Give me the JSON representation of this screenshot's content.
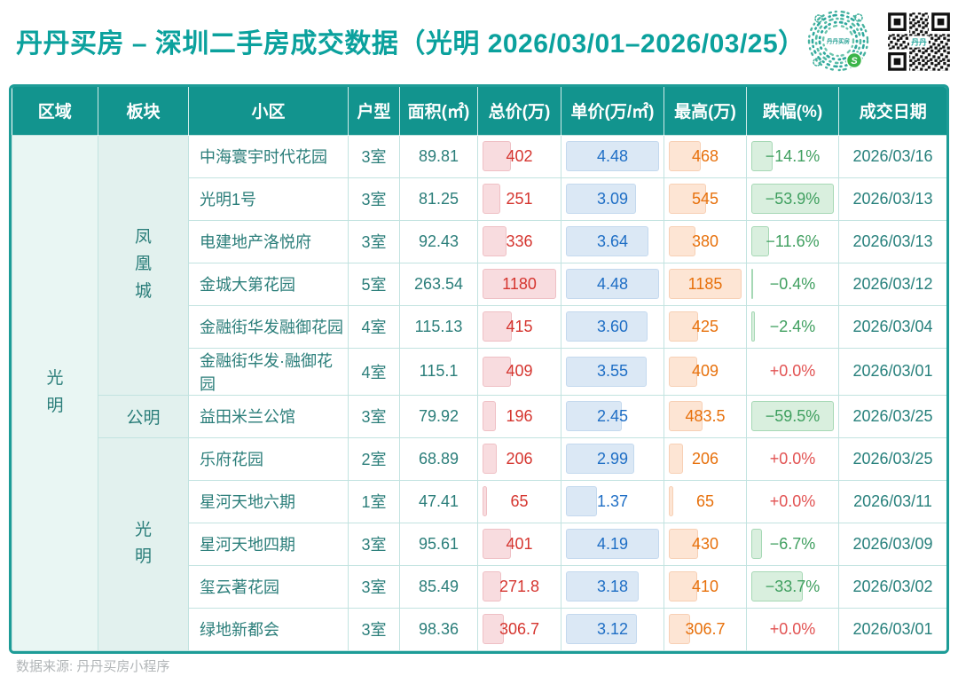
{
  "title": "丹丹买房 – 深圳二手房成交数据（光明 2026/03/01–2026/03/25）",
  "header_icons": {
    "miniprogram_logo_text": "丹丹买房",
    "qr_center_logo_text": "丹丹"
  },
  "footer": {
    "source": "数据来源: 丹丹买房小程序"
  },
  "colors": {
    "brand_teal": "#12948e",
    "title_teal": "#0ba19d",
    "body_teal_text": "#2b7e7a",
    "grid_line": "#c2e3e0",
    "total_red": "#d5352f",
    "unit_blue": "#1e6ec5",
    "high_orange": "#e7700b",
    "drop_green": "#3f9f5f",
    "drop_positive_red": "#e25252",
    "bar_pink": "#f8dcdf",
    "bar_blue": "#dbe8f5",
    "bar_orange": "#fde5d4",
    "bar_green": "#d9efde"
  },
  "table": {
    "headers": [
      "区域",
      "板块",
      "小区",
      "户型",
      "面积(㎡)",
      "总价(万)",
      "单价(万/㎡)",
      "最高(万)",
      "跌幅(%)",
      "成交日期"
    ],
    "region": "光明",
    "sectors": [
      "凤凰城",
      "公明",
      "光明"
    ],
    "rows": [
      {
        "community": "中海寰宇时代花园",
        "layout": "3室",
        "area": "89.81",
        "total": "402",
        "total_bar": "34%",
        "unit": "4.48",
        "unit_bar": "100%",
        "high": "468",
        "high_bar": "39.5%",
        "drop": "−14.1%",
        "drop_bar": "23.7%",
        "date": "2026/03/16"
      },
      {
        "community": "光明1号",
        "layout": "3室",
        "area": "81.25",
        "total": "251",
        "total_bar": "21.3%",
        "unit": "3.09",
        "unit_bar": "69%",
        "high": "545",
        "high_bar": "46%",
        "drop": "−53.9%",
        "drop_bar": "90.6%",
        "date": "2026/03/13"
      },
      {
        "community": "电建地产洛悦府",
        "layout": "3室",
        "area": "92.43",
        "total": "336",
        "total_bar": "28.5%",
        "unit": "3.64",
        "unit_bar": "81.3%",
        "high": "380",
        "high_bar": "32.1%",
        "drop": "−11.6%",
        "drop_bar": "19.5%",
        "date": "2026/03/13"
      },
      {
        "community": "金城大第花园",
        "layout": "5室",
        "area": "263.54",
        "total": "1180",
        "total_bar": "100%",
        "unit": "4.48",
        "unit_bar": "100%",
        "high": "1185",
        "high_bar": "100%",
        "drop": "−0.4%",
        "drop_bar": "1.2%",
        "date": "2026/03/12"
      },
      {
        "community": "金融街华发融御花园",
        "layout": "4室",
        "area": "115.13",
        "total": "415",
        "total_bar": "35.2%",
        "unit": "3.60",
        "unit_bar": "80.4%",
        "high": "425",
        "high_bar": "35.9%",
        "drop": "−2.4%",
        "drop_bar": "4%",
        "date": "2026/03/04"
      },
      {
        "community": "金融街华发·融御花园",
        "layout": "4室",
        "area": "115.1",
        "total": "409",
        "total_bar": "34.7%",
        "unit": "3.55",
        "unit_bar": "79.2%",
        "high": "409",
        "high_bar": "34.5%",
        "drop": "+0.0%",
        "drop_bar": "0",
        "date": "2026/03/01"
      },
      {
        "community": "益田米兰公馆",
        "layout": "3室",
        "area": "79.92",
        "total": "196",
        "total_bar": "16.6%",
        "unit": "2.45",
        "unit_bar": "54.7%",
        "high": "483.5",
        "high_bar": "40.8%",
        "drop": "−59.5%",
        "drop_bar": "100%",
        "date": "2026/03/25"
      },
      {
        "community": "乐府花园",
        "layout": "2室",
        "area": "68.89",
        "total": "206",
        "total_bar": "17.5%",
        "unit": "2.99",
        "unit_bar": "66.7%",
        "high": "206",
        "high_bar": "17.4%",
        "drop": "+0.0%",
        "drop_bar": "0",
        "date": "2026/03/25"
      },
      {
        "community": "星河天地六期",
        "layout": "1室",
        "area": "47.41",
        "total": "65",
        "total_bar": "5.5%",
        "unit": "1.37",
        "unit_bar": "30.6%",
        "high": "65",
        "high_bar": "5.5%",
        "drop": "+0.0%",
        "drop_bar": "0",
        "date": "2026/03/11"
      },
      {
        "community": "星河天地四期",
        "layout": "3室",
        "area": "95.61",
        "total": "401",
        "total_bar": "34%",
        "unit": "4.19",
        "unit_bar": "93.5%",
        "high": "430",
        "high_bar": "36.3%",
        "drop": "−6.7%",
        "drop_bar": "11.3%",
        "date": "2026/03/09"
      },
      {
        "community": "玺云著花园",
        "layout": "3室",
        "area": "85.49",
        "total": "271.8",
        "total_bar": "23%",
        "unit": "3.18",
        "unit_bar": "71%",
        "high": "410",
        "high_bar": "34.6%",
        "drop": "−33.7%",
        "drop_bar": "56.6%",
        "date": "2026/03/02"
      },
      {
        "community": "绿地新都会",
        "layout": "3室",
        "area": "98.36",
        "total": "306.7",
        "total_bar": "26%",
        "unit": "3.12",
        "unit_bar": "69.6%",
        "high": "306.7",
        "high_bar": "25.9%",
        "drop": "+0.0%",
        "drop_bar": "0",
        "date": "2026/03/01"
      }
    ]
  },
  "chart_data": {
    "type": "table",
    "title": "丹丹买房 – 深圳二手房成交数据（光明 2026/03/01–2026/03/25）",
    "columns": [
      "区域",
      "板块",
      "小区",
      "户型",
      "面积(㎡)",
      "总价(万)",
      "单价(万/㎡)",
      "最高(万)",
      "跌幅(%)",
      "成交日期"
    ],
    "region": "光明",
    "sector_groups": [
      {
        "sector": "凤凰城",
        "first_row": 0,
        "last_row": 5
      },
      {
        "sector": "公明",
        "first_row": 6,
        "last_row": 6
      },
      {
        "sector": "光明",
        "first_row": 7,
        "last_row": 11
      }
    ],
    "rows": [
      [
        "光明",
        "凤凰城",
        "中海寰宇时代花园",
        "3室",
        89.81,
        402,
        4.48,
        468,
        -14.1,
        "2026/03/16"
      ],
      [
        "光明",
        "凤凰城",
        "光明1号",
        "3室",
        81.25,
        251,
        3.09,
        545,
        -53.9,
        "2026/03/13"
      ],
      [
        "光明",
        "凤凰城",
        "电建地产洛悦府",
        "3室",
        92.43,
        336,
        3.64,
        380,
        -11.6,
        "2026/03/13"
      ],
      [
        "光明",
        "凤凰城",
        "金城大第花园",
        "5室",
        263.54,
        1180,
        4.48,
        1185,
        -0.4,
        "2026/03/12"
      ],
      [
        "光明",
        "凤凰城",
        "金融街华发融御花园",
        "4室",
        115.13,
        415,
        3.6,
        425,
        -2.4,
        "2026/03/04"
      ],
      [
        "光明",
        "凤凰城",
        "金融街华发·融御花园",
        "4室",
        115.1,
        409,
        3.55,
        409,
        0.0,
        "2026/03/01"
      ],
      [
        "光明",
        "公明",
        "益田米兰公馆",
        "3室",
        79.92,
        196,
        2.45,
        483.5,
        -59.5,
        "2026/03/25"
      ],
      [
        "光明",
        "光明",
        "乐府花园",
        "2室",
        68.89,
        206,
        2.99,
        206,
        0.0,
        "2026/03/25"
      ],
      [
        "光明",
        "光明",
        "星河天地六期",
        "1室",
        47.41,
        65,
        1.37,
        65,
        0.0,
        "2026/03/11"
      ],
      [
        "光明",
        "光明",
        "星河天地四期",
        "3室",
        95.61,
        401,
        4.19,
        430,
        -6.7,
        "2026/03/09"
      ],
      [
        "光明",
        "光明",
        "玺云著花园",
        "3室",
        85.49,
        271.8,
        3.18,
        410,
        -33.7,
        "2026/03/02"
      ],
      [
        "光明",
        "光明",
        "绿地新都会",
        "3室",
        98.36,
        306.7,
        3.12,
        306.7,
        0.0,
        "2026/03/01"
      ]
    ],
    "in_cell_bar_maxima": {
      "总价(万)": 1180,
      "单价(万/㎡)": 4.48,
      "最高(万)": 1185,
      "跌幅(%)_abs": 59.5
    },
    "legend_position": "none",
    "grid": true
  }
}
